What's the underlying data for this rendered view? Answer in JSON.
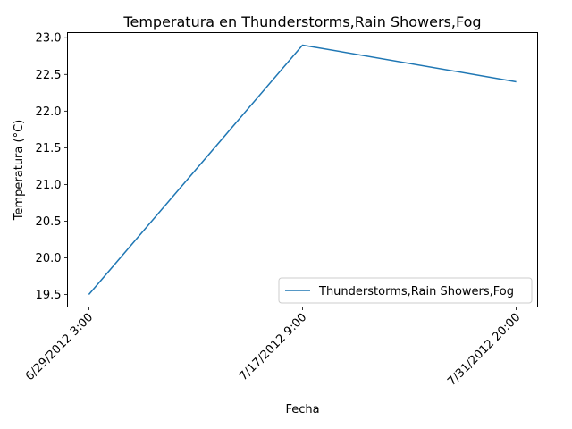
{
  "chart_data": {
    "type": "line",
    "title": "Temperatura en Thunderstorms,Rain Showers,Fog",
    "xlabel": "Fecha",
    "ylabel": "Temperatura (°C)",
    "categories": [
      "6/29/2012 3:00",
      "7/17/2012 9:00",
      "7/31/2012 20:00"
    ],
    "series": [
      {
        "name": "Thunderstorms,Rain Showers,Fog",
        "values": [
          19.5,
          22.9,
          22.4
        ],
        "color": "#1f77b4"
      }
    ],
    "yticks": [
      "19.5",
      "20.0",
      "20.5",
      "21.0",
      "21.5",
      "22.0",
      "22.5",
      "23.0"
    ],
    "ylim": [
      19.33,
      23.07
    ],
    "grid": false,
    "legend_position": "lower right"
  }
}
